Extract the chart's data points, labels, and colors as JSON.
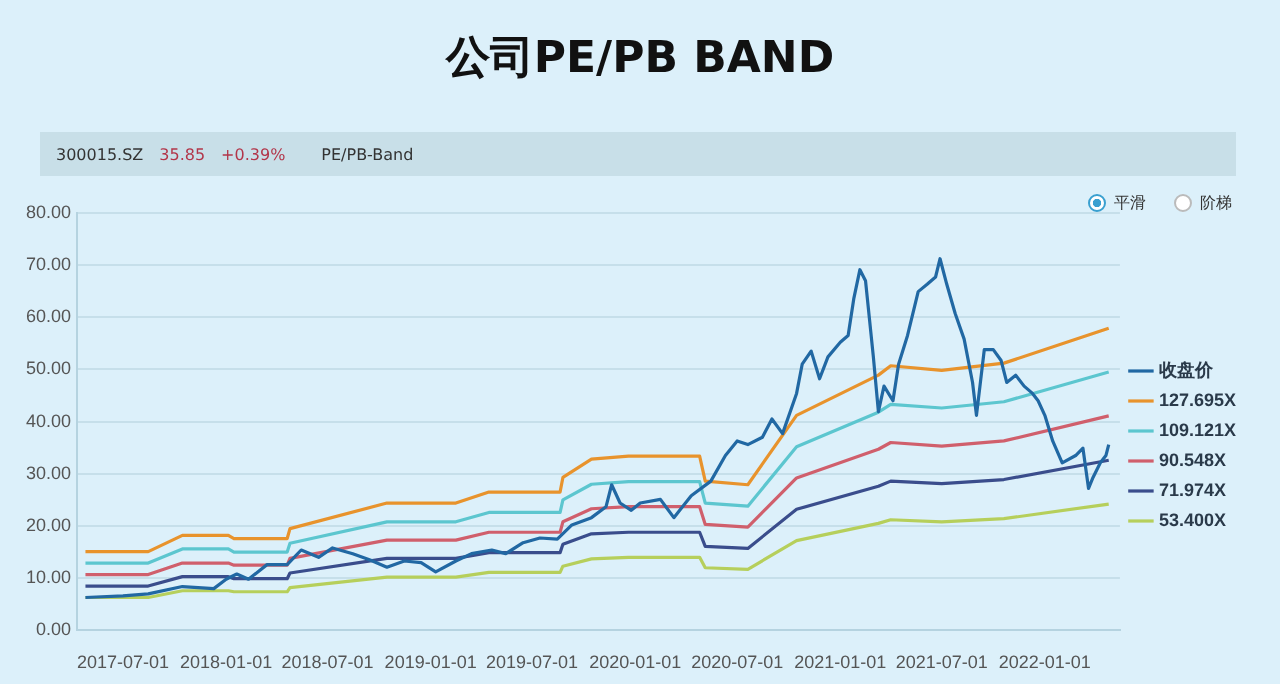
{
  "chart_data": {
    "type": "line",
    "title": "公司PE/PB BAND",
    "annotations": [
      "300015.SZ",
      "35.85",
      "+0.39%",
      "PE/PB-Band",
      "平滑",
      "阶梯"
    ],
    "xlim": [
      "2017-04-10",
      "2022-05-15"
    ],
    "xticks": [
      "2017-07-01",
      "2018-01-01",
      "2018-07-01",
      "2019-01-01",
      "2019-07-01",
      "2020-01-01",
      "2020-07-01",
      "2021-01-01",
      "2021-07-01",
      "2022-01-01"
    ],
    "ylim": [
      0,
      80
    ],
    "yticks": [
      {
        "value": 0,
        "label": "0.00"
      },
      {
        "value": 10,
        "label": "10.00"
      },
      {
        "value": 20,
        "label": "20.00"
      },
      {
        "value": 30,
        "label": "30.00"
      },
      {
        "value": 40,
        "label": "40.00"
      },
      {
        "value": 50,
        "label": "50.00"
      },
      {
        "value": 60,
        "label": "60.00"
      },
      {
        "value": 70,
        "label": "70.00"
      },
      {
        "value": 80,
        "label": "80.00"
      }
    ],
    "grid": "y",
    "legend": "right",
    "marker": "none",
    "line_style": "solid",
    "series": [
      {
        "name": "收盘价",
        "color": "#2168a3",
        "x": [
          "2017-04-25",
          "2017-07-01",
          "2017-08-15",
          "2017-10-15",
          "2017-12-10",
          "2018-01-01",
          "2018-01-20",
          "2018-02-10",
          "2018-03-15",
          "2018-04-20",
          "2018-05-15",
          "2018-06-15",
          "2018-07-10",
          "2018-08-15",
          "2018-09-15",
          "2018-10-15",
          "2018-11-15",
          "2018-12-15",
          "2019-01-10",
          "2019-02-15",
          "2019-03-15",
          "2019-04-20",
          "2019-05-15",
          "2019-06-15",
          "2019-07-15",
          "2019-08-15",
          "2019-09-10",
          "2019-10-15",
          "2019-11-10",
          "2019-11-20",
          "2019-12-05",
          "2019-12-25",
          "2020-01-10",
          "2020-02-15",
          "2020-03-10",
          "2020-04-10",
          "2020-05-15",
          "2020-06-10",
          "2020-07-01",
          "2020-07-20",
          "2020-08-15",
          "2020-09-01",
          "2020-09-20",
          "2020-10-15",
          "2020-10-25",
          "2020-11-10",
          "2020-11-25",
          "2020-12-10",
          "2021-01-01",
          "2021-01-15",
          "2021-01-25",
          "2021-02-05",
          "2021-02-15",
          "2021-03-01",
          "2021-03-10",
          "2021-03-20",
          "2021-04-05",
          "2021-04-15",
          "2021-05-01",
          "2021-05-20",
          "2021-06-05",
          "2021-06-20",
          "2021-06-28",
          "2021-07-10",
          "2021-07-25",
          "2021-08-10",
          "2021-08-25",
          "2021-09-01",
          "2021-09-15",
          "2021-10-01",
          "2021-10-15",
          "2021-10-25",
          "2021-11-10",
          "2021-11-25",
          "2021-12-10",
          "2021-12-20",
          "2022-01-01",
          "2022-01-15",
          "2022-02-01",
          "2022-02-25",
          "2022-03-10",
          "2022-03-20",
          "2022-03-28",
          "2022-04-10",
          "2022-04-20",
          "2022-04-25"
        ],
        "values": [
          6.3,
          6.6,
          7.0,
          8.4,
          8.0,
          9.8,
          10.8,
          9.8,
          12.6,
          12.6,
          15.4,
          14.0,
          15.8,
          14.7,
          13.5,
          12.1,
          13.3,
          13.0,
          11.2,
          13.3,
          14.7,
          15.4,
          14.7,
          16.8,
          17.7,
          17.5,
          20.2,
          21.6,
          23.7,
          27.9,
          24.4,
          23.0,
          24.4,
          25.1,
          21.6,
          25.8,
          28.6,
          33.5,
          36.3,
          35.6,
          37.0,
          40.5,
          37.7,
          45.4,
          51.0,
          53.5,
          48.2,
          52.4,
          55.2,
          56.5,
          63.5,
          69.1,
          67.0,
          52.4,
          41.9,
          46.8,
          44.0,
          51.0,
          56.5,
          64.9,
          66.3,
          67.7,
          71.2,
          66.3,
          60.7,
          55.8,
          47.5,
          41.2,
          53.8,
          53.8,
          51.7,
          47.5,
          48.9,
          46.8,
          45.4,
          44.0,
          41.2,
          36.3,
          32.1,
          33.5,
          34.9,
          27.2,
          29.3,
          32.1,
          33.5,
          35.6
        ]
      },
      {
        "name": "127.695X",
        "color": "#e8932c",
        "x": [
          "2017-04-25",
          "2017-08-15",
          "2017-10-15",
          "2018-01-05",
          "2018-01-15",
          "2018-04-20",
          "2018-04-25",
          "2018-10-15",
          "2019-02-15",
          "2019-04-15",
          "2019-08-20",
          "2019-08-25",
          "2019-10-15",
          "2019-12-20",
          "2020-04-25",
          "2020-05-05",
          "2020-07-20",
          "2020-10-15",
          "2021-03-10",
          "2021-04-01",
          "2021-07-01",
          "2021-10-20",
          "2022-04-25"
        ],
        "values": [
          15.1,
          15.1,
          18.2,
          18.2,
          17.6,
          17.6,
          19.5,
          24.4,
          24.4,
          26.5,
          26.5,
          29.3,
          32.8,
          33.4,
          33.4,
          28.6,
          27.9,
          41.2,
          48.9,
          50.7,
          49.8,
          51.2,
          57.9
        ]
      },
      {
        "name": "109.121X",
        "color": "#5cc6cf",
        "x": [
          "2017-04-25",
          "2017-08-15",
          "2017-10-15",
          "2018-01-05",
          "2018-01-15",
          "2018-04-20",
          "2018-04-25",
          "2018-10-15",
          "2019-02-15",
          "2019-04-15",
          "2019-08-20",
          "2019-08-25",
          "2019-10-15",
          "2019-12-20",
          "2020-04-25",
          "2020-05-05",
          "2020-07-20",
          "2020-10-15",
          "2021-03-10",
          "2021-04-01",
          "2021-07-01",
          "2021-10-20",
          "2022-04-25"
        ],
        "values": [
          12.9,
          12.9,
          15.6,
          15.6,
          15.0,
          15.0,
          16.7,
          20.8,
          20.8,
          22.6,
          22.6,
          25.0,
          28.0,
          28.5,
          28.5,
          24.4,
          23.8,
          35.2,
          41.8,
          43.3,
          42.6,
          43.8,
          49.5
        ]
      },
      {
        "name": "90.548X",
        "color": "#d05f6c",
        "x": [
          "2017-04-25",
          "2017-08-15",
          "2017-10-15",
          "2018-01-05",
          "2018-01-15",
          "2018-04-20",
          "2018-04-25",
          "2018-10-15",
          "2019-02-15",
          "2019-04-15",
          "2019-08-20",
          "2019-08-25",
          "2019-10-15",
          "2019-12-20",
          "2020-04-25",
          "2020-05-05",
          "2020-07-20",
          "2020-10-15",
          "2021-03-10",
          "2021-04-01",
          "2021-07-01",
          "2021-10-20",
          "2022-04-25"
        ],
        "values": [
          10.7,
          10.7,
          12.9,
          12.9,
          12.5,
          12.5,
          13.8,
          17.3,
          17.3,
          18.8,
          18.8,
          20.8,
          23.3,
          23.7,
          23.7,
          20.3,
          19.8,
          29.2,
          34.7,
          36.0,
          35.3,
          36.3,
          41.1
        ]
      },
      {
        "name": "71.974X",
        "color": "#3a4d8c",
        "x": [
          "2017-04-25",
          "2017-08-15",
          "2017-10-15",
          "2018-01-05",
          "2018-01-15",
          "2018-04-20",
          "2018-04-25",
          "2018-10-15",
          "2019-02-15",
          "2019-04-15",
          "2019-08-20",
          "2019-08-25",
          "2019-10-15",
          "2019-12-20",
          "2020-04-25",
          "2020-05-05",
          "2020-07-20",
          "2020-10-15",
          "2021-03-10",
          "2021-04-01",
          "2021-07-01",
          "2021-10-20",
          "2022-04-25"
        ],
        "values": [
          8.5,
          8.5,
          10.3,
          10.3,
          9.9,
          9.9,
          11.0,
          13.8,
          13.8,
          14.9,
          14.9,
          16.5,
          18.5,
          18.8,
          18.8,
          16.1,
          15.7,
          23.2,
          27.6,
          28.6,
          28.1,
          28.9,
          32.6
        ]
      },
      {
        "name": "53.400X",
        "color": "#b6cf5b",
        "x": [
          "2017-04-25",
          "2017-08-15",
          "2017-10-15",
          "2018-01-05",
          "2018-01-15",
          "2018-04-20",
          "2018-04-25",
          "2018-10-15",
          "2019-02-15",
          "2019-04-15",
          "2019-08-20",
          "2019-08-25",
          "2019-10-15",
          "2019-12-20",
          "2020-04-25",
          "2020-05-05",
          "2020-07-20",
          "2020-10-15",
          "2021-03-10",
          "2021-04-01",
          "2021-07-01",
          "2021-10-20",
          "2022-04-25"
        ],
        "values": [
          6.3,
          6.3,
          7.6,
          7.6,
          7.4,
          7.4,
          8.2,
          10.2,
          10.2,
          11.1,
          11.1,
          12.3,
          13.7,
          14.0,
          14.0,
          12.0,
          11.7,
          17.2,
          20.5,
          21.2,
          20.8,
          21.4,
          24.2
        ]
      }
    ]
  }
}
